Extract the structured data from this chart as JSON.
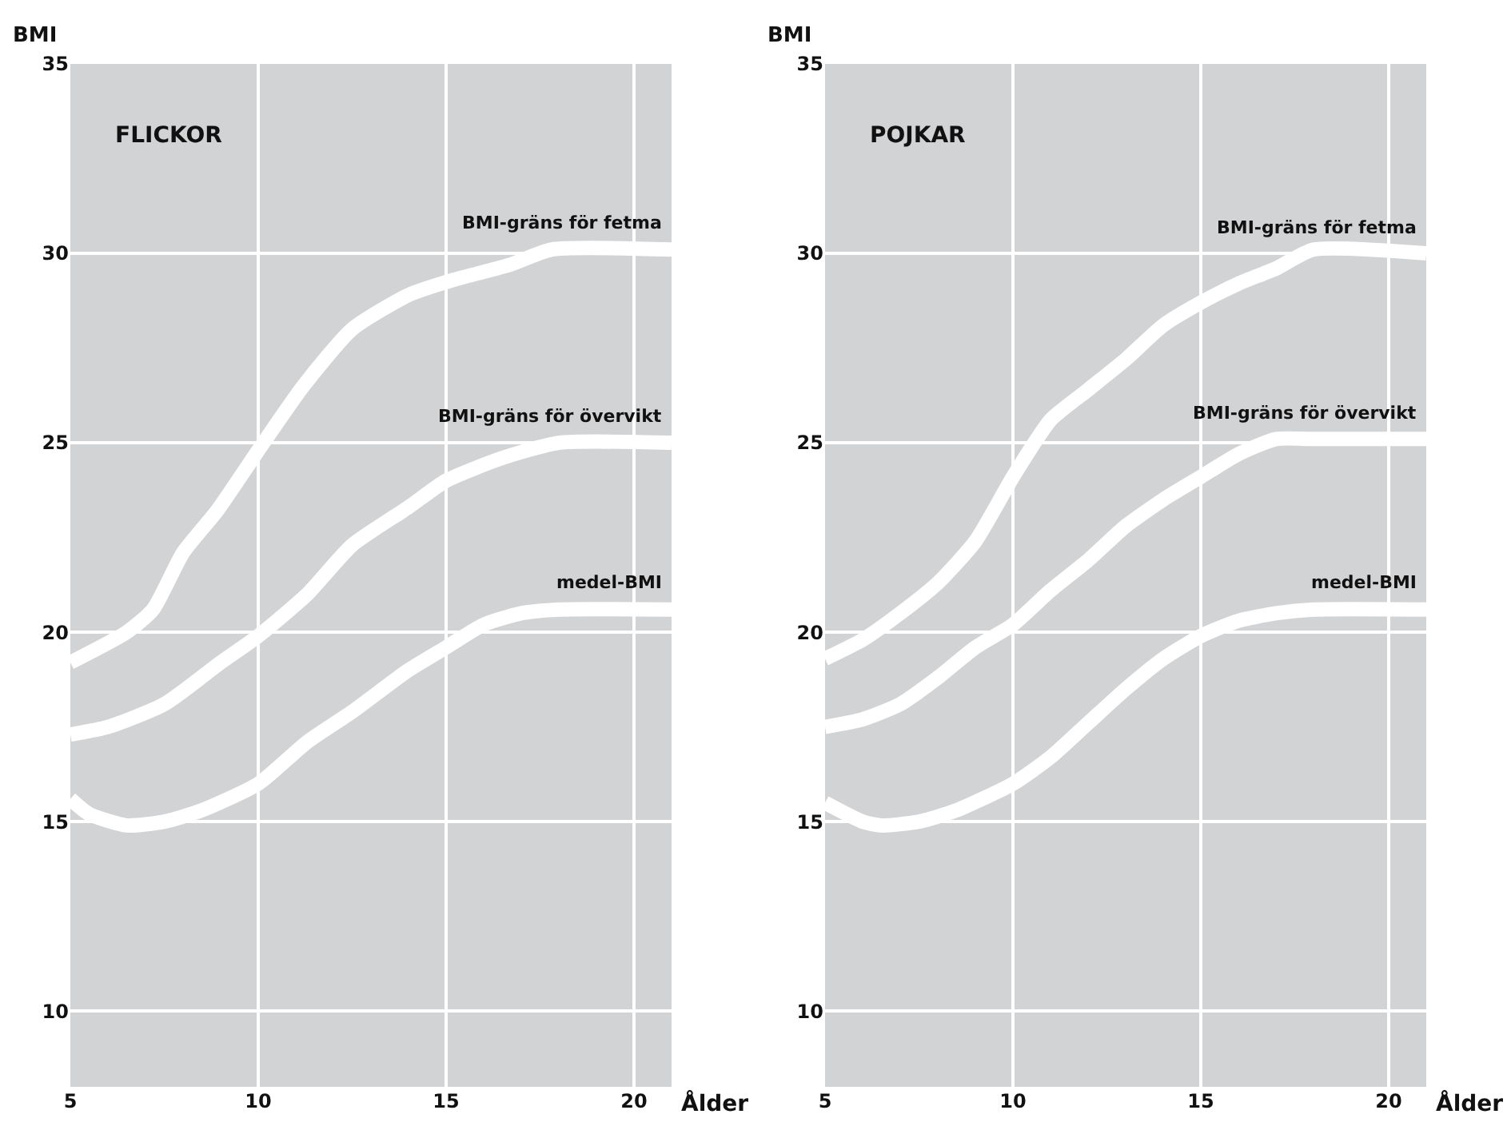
{
  "chart_data": [
    {
      "type": "line",
      "title": "FLICKOR",
      "ylabel": "BMI",
      "xlabel": "Ålder",
      "xlim": [
        5,
        21
      ],
      "ylim": [
        8,
        35
      ],
      "xticks": [
        5,
        10,
        15,
        20
      ],
      "yticks": [
        10,
        15,
        20,
        25,
        30,
        35
      ],
      "grid": true,
      "legend": false,
      "series": [
        {
          "name": "BMI-gräns för fetma",
          "color": "#ffffff",
          "x": [
            5,
            6.5,
            7.2,
            8,
            8.9,
            10,
            11.2,
            12.5,
            14,
            15.2,
            16.7,
            17.8,
            21
          ],
          "values": [
            19.2,
            20,
            20.6,
            22.1,
            23.2,
            24.8,
            26.5,
            28,
            28.9,
            29.3,
            29.7,
            30.1,
            30.1
          ]
        },
        {
          "name": "BMI-gräns för övervikt",
          "color": "#ffffff",
          "x": [
            5,
            6,
            7.5,
            9,
            10,
            11.3,
            12.5,
            14,
            15,
            16.5,
            18,
            21
          ],
          "values": [
            17.3,
            17.5,
            18.1,
            19.2,
            19.9,
            21,
            22.3,
            23.3,
            24,
            24.6,
            25,
            25
          ]
        },
        {
          "name": "medel-BMI",
          "color": "#ffffff",
          "x": [
            5,
            5.5,
            6.5,
            7.5,
            8.5,
            10,
            11.3,
            12.5,
            14,
            15,
            16,
            17,
            18,
            21
          ],
          "values": [
            15.6,
            15.2,
            14.9,
            15,
            15.3,
            16,
            17.1,
            17.9,
            19,
            19.6,
            20.2,
            20.5,
            20.6,
            20.6
          ]
        }
      ]
    },
    {
      "type": "line",
      "title": "POJKAR",
      "ylabel": "BMI",
      "xlabel": "Ålder",
      "xlim": [
        5,
        21
      ],
      "ylim": [
        8,
        35
      ],
      "xticks": [
        5,
        10,
        15,
        20
      ],
      "yticks": [
        10,
        15,
        20,
        25,
        30,
        35
      ],
      "grid": true,
      "legend": false,
      "series": [
        {
          "name": "BMI-gräns för fetma",
          "color": "#ffffff",
          "x": [
            5,
            6,
            7,
            8,
            9,
            10,
            11,
            12,
            13,
            14,
            15,
            16,
            17,
            18,
            21
          ],
          "values": [
            19.3,
            19.8,
            20.5,
            21.3,
            22.4,
            24.1,
            25.6,
            26.4,
            27.2,
            28.1,
            28.7,
            29.2,
            29.6,
            30.1,
            30
          ]
        },
        {
          "name": "BMI-gräns för övervikt",
          "color": "#ffffff",
          "x": [
            5,
            6,
            7,
            8,
            9,
            10,
            11,
            12,
            13,
            14,
            15,
            16,
            17,
            18,
            21
          ],
          "values": [
            17.5,
            17.7,
            18.1,
            18.8,
            19.6,
            20.2,
            21.1,
            21.9,
            22.8,
            23.5,
            24.1,
            24.7,
            25.1,
            25.1,
            25.1
          ]
        },
        {
          "name": "medel-BMI",
          "color": "#ffffff",
          "x": [
            5,
            6,
            6.5,
            7.5,
            8.5,
            10,
            11,
            12,
            13,
            14,
            15,
            16,
            17,
            18,
            21
          ],
          "values": [
            15.5,
            15,
            14.9,
            15,
            15.3,
            16,
            16.7,
            17.6,
            18.5,
            19.3,
            19.9,
            20.3,
            20.5,
            20.6,
            20.6
          ]
        }
      ]
    }
  ]
}
